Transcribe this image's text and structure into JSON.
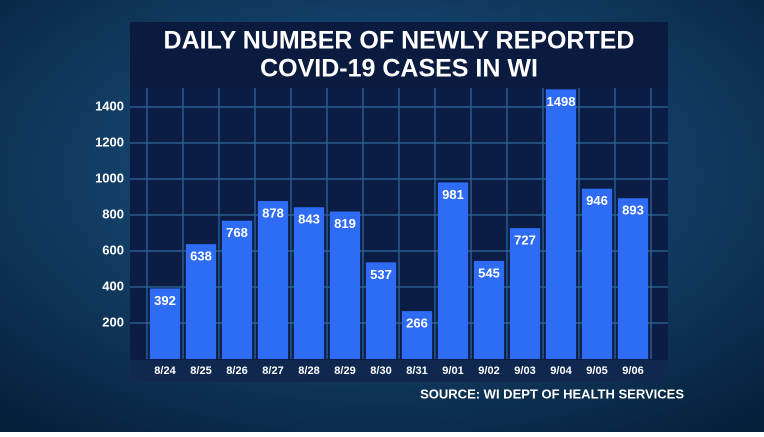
{
  "chart_data": {
    "type": "bar",
    "title": [
      "DAILY NUMBER OF NEWLY REPORTED",
      "COVID-19 CASES IN WI"
    ],
    "source": "SOURCE: WI DEPT OF HEALTH SERVICES",
    "categories": [
      "8/24",
      "8/25",
      "8/26",
      "8/27",
      "8/28",
      "8/29",
      "8/30",
      "8/31",
      "9/01",
      "9/02",
      "9/03",
      "9/04",
      "9/05",
      "9/06"
    ],
    "values": [
      392,
      638,
      768,
      878,
      843,
      819,
      537,
      266,
      981,
      545,
      727,
      1498,
      946,
      893
    ],
    "color": "#2f6cf6",
    "ylim": [
      0,
      1500
    ],
    "yticks": [
      200,
      400,
      600,
      800,
      1000,
      1200,
      1400
    ],
    "grid": true
  }
}
